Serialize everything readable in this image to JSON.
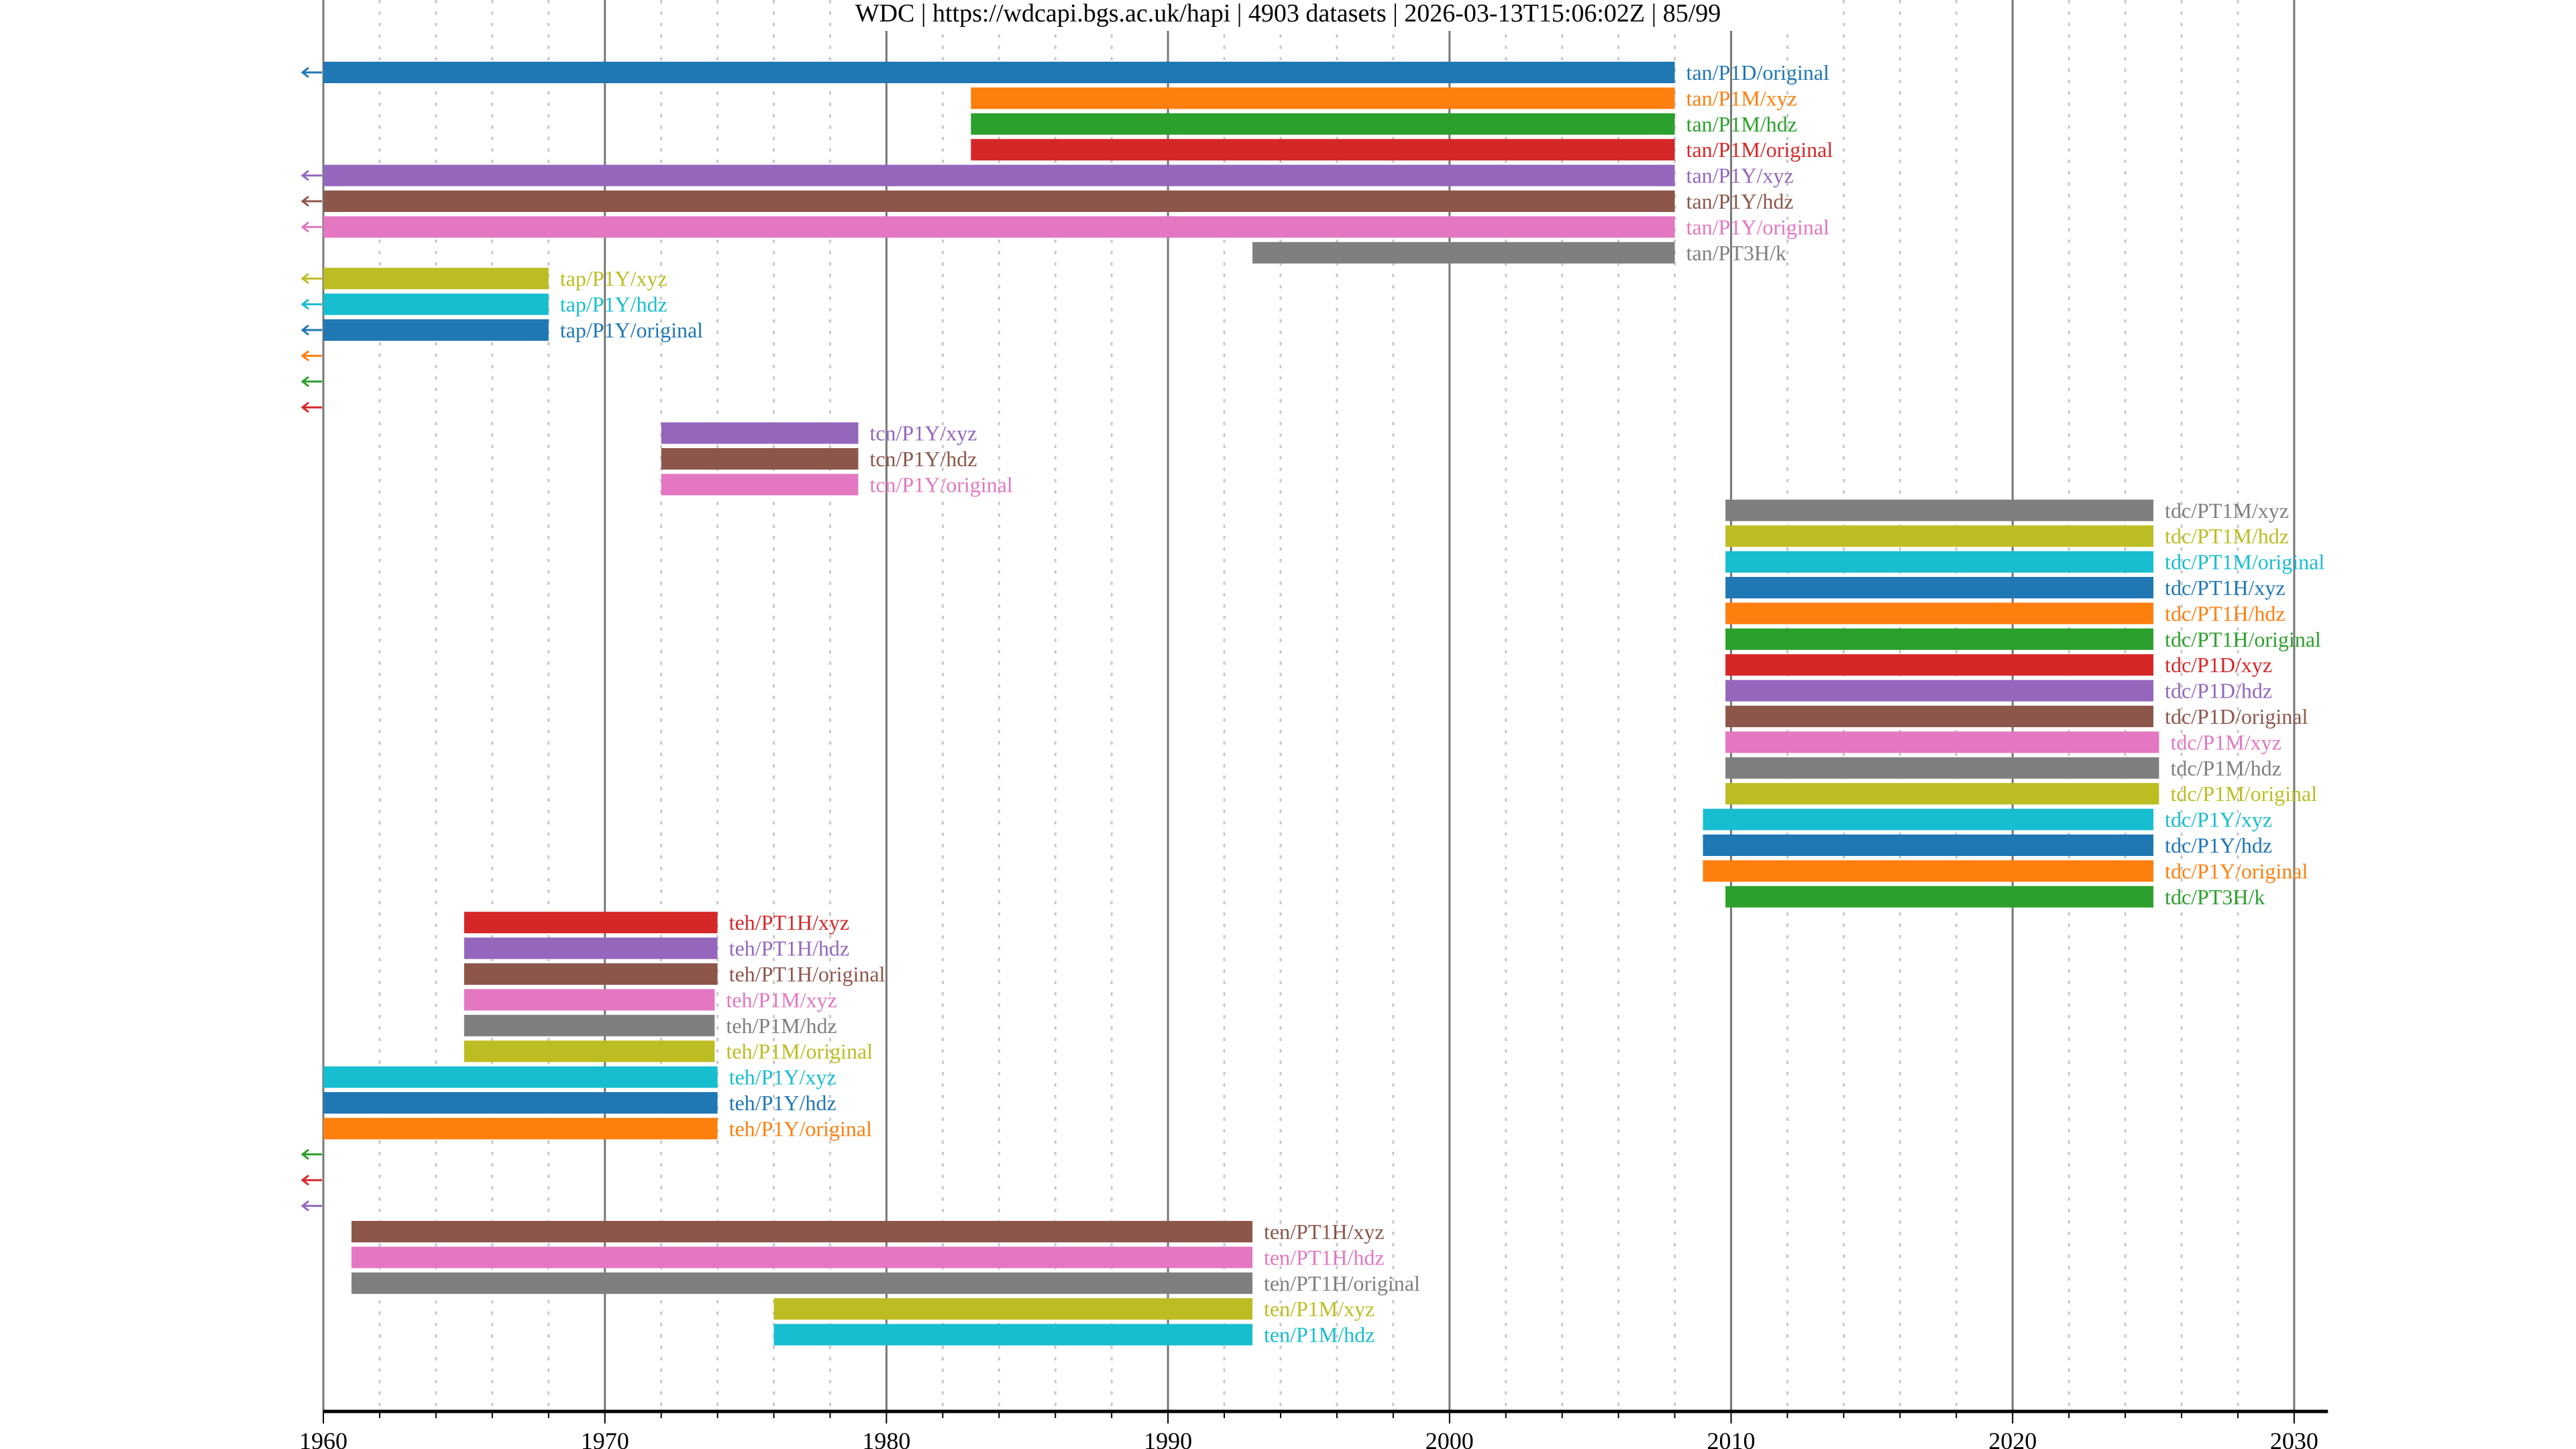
{
  "chart_data": {
    "type": "timeline-bar",
    "title": "WDC | https://wdcapi.bgs.ac.uk/hapi | 4903 datasets | 2026-03-13T15:06:02Z | 85/99",
    "xlabel": "",
    "ylabel": "",
    "xlim": [
      1960,
      2031.2
    ],
    "xticks": [
      1960,
      1970,
      1980,
      1990,
      2000,
      2010,
      2020,
      2030
    ],
    "minor_grid_step_years": 2,
    "grid": true,
    "rows": [
      {
        "name": "tan/P1D/original",
        "start": null,
        "end": 2008,
        "color": "#1f77b4",
        "before_range": true
      },
      {
        "name": "tan/P1M/xyz",
        "start": 1983,
        "end": 2008,
        "color": "#ff7f0e",
        "before_range": false
      },
      {
        "name": "tan/P1M/hdz",
        "start": 1983,
        "end": 2008,
        "color": "#2ca02c",
        "before_range": false
      },
      {
        "name": "tan/P1M/original",
        "start": 1983,
        "end": 2008,
        "color": "#d62728",
        "before_range": false
      },
      {
        "name": "tan/P1Y/xyz",
        "start": null,
        "end": 2008,
        "color": "#9467bd",
        "before_range": true
      },
      {
        "name": "tan/P1Y/hdz",
        "start": null,
        "end": 2008,
        "color": "#8c564b",
        "before_range": true
      },
      {
        "name": "tan/P1Y/original",
        "start": null,
        "end": 2008,
        "color": "#e377c2",
        "before_range": true
      },
      {
        "name": "tan/PT3H/k",
        "start": 1993,
        "end": 2008,
        "color": "#7f7f7f",
        "before_range": false
      },
      {
        "name": "tap/P1Y/xyz",
        "start": null,
        "end": 1968,
        "color": "#bcbd22",
        "before_range": true
      },
      {
        "name": "tap/P1Y/hdz",
        "start": null,
        "end": 1968,
        "color": "#17becf",
        "before_range": true
      },
      {
        "name": "tap/P1Y/original",
        "start": null,
        "end": 1968,
        "color": "#1f77b4",
        "before_range": true
      },
      {
        "name": null,
        "start": null,
        "end": null,
        "color": "#ff7f0e",
        "before_range": true
      },
      {
        "name": null,
        "start": null,
        "end": null,
        "color": "#2ca02c",
        "before_range": true
      },
      {
        "name": null,
        "start": null,
        "end": null,
        "color": "#d62728",
        "before_range": true
      },
      {
        "name": "tcn/P1Y/xyz",
        "start": 1972,
        "end": 1979,
        "color": "#9467bd",
        "before_range": false
      },
      {
        "name": "tcn/P1Y/hdz",
        "start": 1972,
        "end": 1979,
        "color": "#8c564b",
        "before_range": false
      },
      {
        "name": "tcn/P1Y/original",
        "start": 1972,
        "end": 1979,
        "color": "#e377c2",
        "before_range": false
      },
      {
        "name": "tdc/PT1M/xyz",
        "start": 2009.8,
        "end": 2025,
        "color": "#7f7f7f",
        "before_range": false
      },
      {
        "name": "tdc/PT1M/hdz",
        "start": 2009.8,
        "end": 2025,
        "color": "#bcbd22",
        "before_range": false
      },
      {
        "name": "tdc/PT1M/original",
        "start": 2009.8,
        "end": 2025,
        "color": "#17becf",
        "before_range": false
      },
      {
        "name": "tdc/PT1H/xyz",
        "start": 2009.8,
        "end": 2025,
        "color": "#1f77b4",
        "before_range": false
      },
      {
        "name": "tdc/PT1H/hdz",
        "start": 2009.8,
        "end": 2025,
        "color": "#ff7f0e",
        "before_range": false
      },
      {
        "name": "tdc/PT1H/original",
        "start": 2009.8,
        "end": 2025,
        "color": "#2ca02c",
        "before_range": false
      },
      {
        "name": "tdc/P1D/xyz",
        "start": 2009.8,
        "end": 2025,
        "color": "#d62728",
        "before_range": false
      },
      {
        "name": "tdc/P1D/hdz",
        "start": 2009.8,
        "end": 2025,
        "color": "#9467bd",
        "before_range": false
      },
      {
        "name": "tdc/P1D/original",
        "start": 2009.8,
        "end": 2025,
        "color": "#8c564b",
        "before_range": false
      },
      {
        "name": "tdc/P1M/xyz",
        "start": 2009.8,
        "end": 2025.2,
        "color": "#e377c2",
        "before_range": false
      },
      {
        "name": "tdc/P1M/hdz",
        "start": 2009.8,
        "end": 2025.2,
        "color": "#7f7f7f",
        "before_range": false
      },
      {
        "name": "tdc/P1M/original",
        "start": 2009.8,
        "end": 2025.2,
        "color": "#bcbd22",
        "before_range": false
      },
      {
        "name": "tdc/P1Y/xyz",
        "start": 2009,
        "end": 2025,
        "color": "#17becf",
        "before_range": false
      },
      {
        "name": "tdc/P1Y/hdz",
        "start": 2009,
        "end": 2025,
        "color": "#1f77b4",
        "before_range": false
      },
      {
        "name": "tdc/P1Y/original",
        "start": 2009,
        "end": 2025,
        "color": "#ff7f0e",
        "before_range": false
      },
      {
        "name": "tdc/PT3H/k",
        "start": 2009.8,
        "end": 2025,
        "color": "#2ca02c",
        "before_range": false
      },
      {
        "name": "teh/PT1H/xyz",
        "start": 1965,
        "end": 1974,
        "color": "#d62728",
        "before_range": false
      },
      {
        "name": "teh/PT1H/hdz",
        "start": 1965,
        "end": 1974,
        "color": "#9467bd",
        "before_range": false
      },
      {
        "name": "teh/PT1H/original",
        "start": 1965,
        "end": 1974,
        "color": "#8c564b",
        "before_range": false
      },
      {
        "name": "teh/P1M/xyz",
        "start": 1965,
        "end": 1973.9,
        "color": "#e377c2",
        "before_range": false
      },
      {
        "name": "teh/P1M/hdz",
        "start": 1965,
        "end": 1973.9,
        "color": "#7f7f7f",
        "before_range": false
      },
      {
        "name": "teh/P1M/original",
        "start": 1965,
        "end": 1973.9,
        "color": "#bcbd22",
        "before_range": false
      },
      {
        "name": "teh/P1Y/xyz",
        "start": 1960,
        "end": 1974,
        "color": "#17becf",
        "before_range": false
      },
      {
        "name": "teh/P1Y/hdz",
        "start": 1960,
        "end": 1974,
        "color": "#1f77b4",
        "before_range": false
      },
      {
        "name": "teh/P1Y/original",
        "start": 1960,
        "end": 1974,
        "color": "#ff7f0e",
        "before_range": false
      },
      {
        "name": null,
        "start": null,
        "end": null,
        "color": "#2ca02c",
        "before_range": true
      },
      {
        "name": null,
        "start": null,
        "end": null,
        "color": "#d62728",
        "before_range": true
      },
      {
        "name": null,
        "start": null,
        "end": null,
        "color": "#9467bd",
        "before_range": true
      },
      {
        "name": "ten/PT1H/xyz",
        "start": 1961,
        "end": 1993,
        "color": "#8c564b",
        "before_range": false
      },
      {
        "name": "ten/PT1H/hdz",
        "start": 1961,
        "end": 1993,
        "color": "#e377c2",
        "before_range": false
      },
      {
        "name": "ten/PT1H/original",
        "start": 1961,
        "end": 1993,
        "color": "#7f7f7f",
        "before_range": false
      },
      {
        "name": "ten/P1M/xyz",
        "start": 1976,
        "end": 1993,
        "color": "#bcbd22",
        "before_range": false
      },
      {
        "name": "ten/P1M/hdz",
        "start": 1976,
        "end": 1993,
        "color": "#17becf",
        "before_range": false
      }
    ]
  }
}
